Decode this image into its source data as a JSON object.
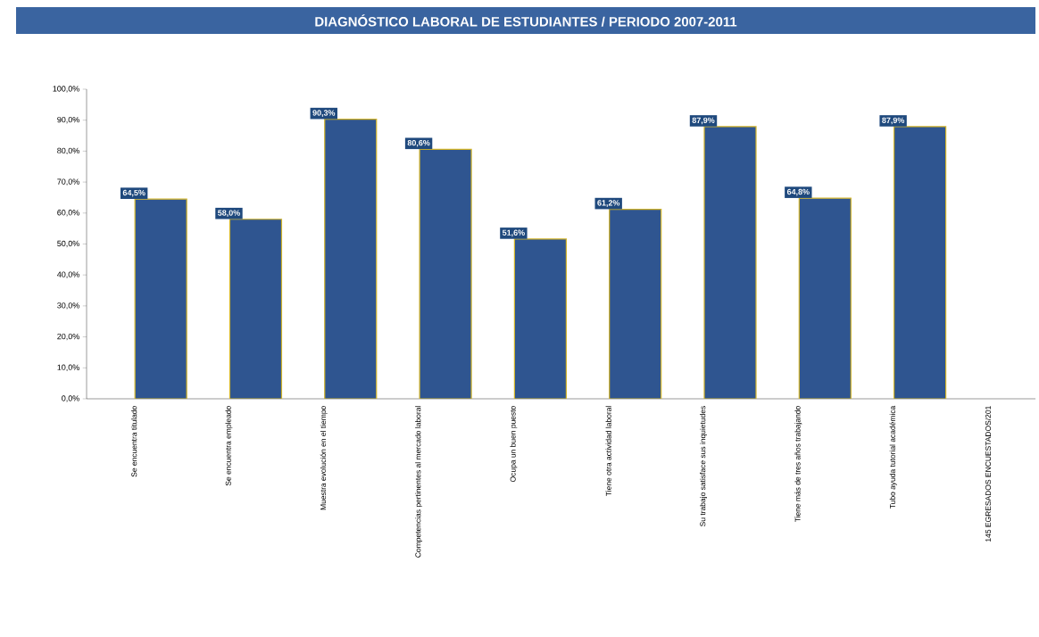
{
  "chart_data": {
    "type": "bar",
    "title": "DIAGNÓSTICO LABORAL DE ESTUDIANTES /  PERIODO 2007-2011",
    "categories": [
      "Se encuentra titulado",
      "Se encuentra empleado",
      "Muestra evolución en el tiempo",
      "Competencias pertinentes al mercado laboral",
      "Ocupa un buen puesto",
      "Tiene otra actividad laboral",
      "Su trabajo satisface sus inquietudes",
      "Tiene más de tres años trabajando",
      "Tubo ayuda tutorial académica",
      "145 EGRESADOS ENCUESTADOS/201"
    ],
    "values": [
      64.5,
      58.0,
      90.3,
      80.6,
      51.6,
      61.2,
      87.9,
      64.8,
      87.9,
      null
    ],
    "value_labels": [
      "64,5%",
      "58,0%",
      "90,3%",
      "80,6%",
      "51,6%",
      "61,2%",
      "87,9%",
      "64,8%",
      "87,9%",
      null
    ],
    "color": "#2f5590",
    "ylim": [
      0,
      100
    ],
    "yticks": [
      {
        "value": 0,
        "label": "0,0%"
      },
      {
        "value": 10,
        "label": "10,0%"
      },
      {
        "value": 20,
        "label": "20,0%"
      },
      {
        "value": 30,
        "label": "30,0%"
      },
      {
        "value": 40,
        "label": "40,0%"
      },
      {
        "value": 50,
        "label": "50,0%"
      },
      {
        "value": 60,
        "label": "60,0%"
      },
      {
        "value": 70,
        "label": "70,0%"
      },
      {
        "value": 80,
        "label": "80,0%"
      },
      {
        "value": 90,
        "label": "90,0%"
      },
      {
        "value": 100,
        "label": "100,0%"
      }
    ],
    "grid": false
  }
}
